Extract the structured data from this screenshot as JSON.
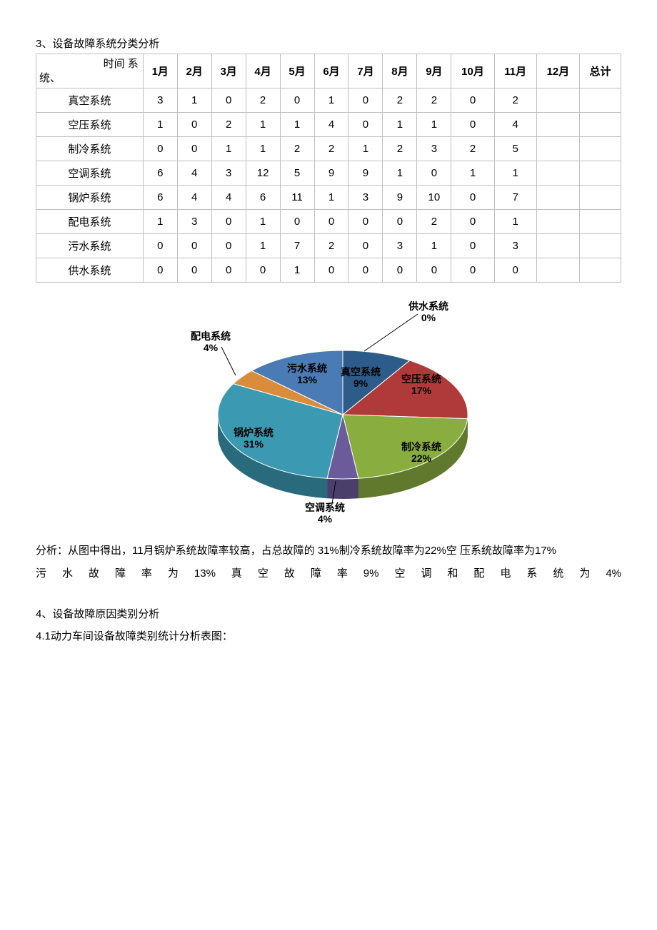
{
  "section3_title": "3、设备故障系统分类分析",
  "table": {
    "corner_top": "时间 系",
    "corner_bot": "统、",
    "months": [
      "1月",
      "2月",
      "3月",
      "4月",
      "5月",
      "6月",
      "7月",
      "8月",
      "9月",
      "10月",
      "11月",
      "12月",
      "总计"
    ],
    "rows": [
      {
        "name": "真空系统",
        "cells": [
          "3",
          "1",
          "0",
          "2",
          "0",
          "1",
          "0",
          "2",
          "2",
          "0",
          "2",
          "",
          ""
        ]
      },
      {
        "name": "空压系统",
        "cells": [
          "1",
          "0",
          "2",
          "1",
          "1",
          "4",
          "0",
          "1",
          "1",
          "0",
          "4",
          "",
          ""
        ]
      },
      {
        "name": "制冷系统",
        "cells": [
          "0",
          "0",
          "1",
          "1",
          "2",
          "2",
          "1",
          "2",
          "3",
          "2",
          "5",
          "",
          ""
        ]
      },
      {
        "name": "空调系统",
        "cells": [
          "6",
          "4",
          "3",
          "12",
          "5",
          "9",
          "9",
          "1",
          "0",
          "1",
          "1",
          "",
          ""
        ]
      },
      {
        "name": "锅炉系统",
        "cells": [
          "6",
          "4",
          "4",
          "6",
          "11",
          "1",
          "3",
          "9",
          "10",
          "0",
          "7",
          "",
          ""
        ]
      },
      {
        "name": "配电系统",
        "cells": [
          "1",
          "3",
          "0",
          "1",
          "0",
          "0",
          "0",
          "0",
          "2",
          "0",
          "1",
          "",
          ""
        ]
      },
      {
        "name": "污水系统",
        "cells": [
          "0",
          "0",
          "0",
          "1",
          "7",
          "2",
          "0",
          "3",
          "1",
          "0",
          "3",
          "",
          ""
        ]
      },
      {
        "name": "供水系统",
        "cells": [
          "0",
          "0",
          "0",
          "0",
          "1",
          "0",
          "0",
          "0",
          "0",
          "0",
          "0",
          "",
          ""
        ]
      }
    ]
  },
  "pie": {
    "type": "pie-3d",
    "slices": [
      {
        "label": "供水系统",
        "pct": "0%",
        "color": "#8b6f47"
      },
      {
        "label": "真空系统",
        "pct": "9%",
        "color": "#2e5c8a"
      },
      {
        "label": "空压系统",
        "pct": "17%",
        "color": "#b03a3a"
      },
      {
        "label": "制冷系统",
        "pct": "22%",
        "color": "#8aad3f"
      },
      {
        "label": "空调系统",
        "pct": "4%",
        "color": "#6b5b9a"
      },
      {
        "label": "锅炉系统",
        "pct": "31%",
        "color": "#3b9ab2"
      },
      {
        "label": "配电系统",
        "pct": "4%",
        "color": "#d98c3a"
      },
      {
        "label": "污水系统",
        "pct": "13%",
        "color": "#4a7bb5"
      }
    ],
    "background_color": "#ffffff",
    "label_fontsize": 14,
    "label_fontweight": "bold"
  },
  "analysis_line1": "分析：从图中得出，11月锅炉系统故障率较高，占总故障的 31%制冷系统故障率为22%空 压系统故障率为17%",
  "analysis_line2": "污水故障率为13%真空故障率9%空调和配电系统为4%",
  "section4_title": "4、设备故障原因类别分析",
  "section4_1": "4.1动力车间设备故障类别统计分析表图："
}
